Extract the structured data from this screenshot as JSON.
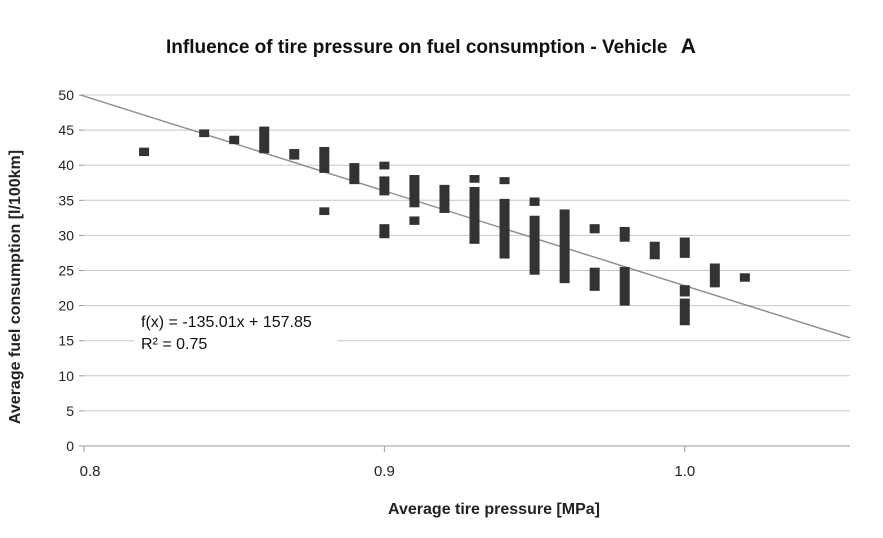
{
  "chart_data": {
    "type": "scatter",
    "title": "Influence of tire pressure on fuel consumption  - Vehicle",
    "title_suffix": "A",
    "xlabel": "Average tire pressure [MPa]",
    "ylabel": "Average fuel consumption [l/100km]",
    "xlim": [
      0.8,
      1.055
    ],
    "ylim": [
      0,
      50
    ],
    "xticks": [
      0.8,
      0.9,
      1.0
    ],
    "xtick_labels": [
      "0.8",
      "0.9",
      "1.0"
    ],
    "yticks": [
      0,
      5,
      10,
      15,
      20,
      25,
      30,
      35,
      40,
      45,
      50
    ],
    "ytick_labels": [
      "0",
      "5",
      "10",
      "15",
      "20",
      "25",
      "30",
      "35",
      "40",
      "45",
      "50"
    ],
    "grid": true,
    "legend": "none",
    "equation": "f(x) = -135.01x + 157.85",
    "r_squared": "R² = 0.75",
    "trendline": {
      "slope": -135.01,
      "intercept": 157.85
    },
    "series": [
      {
        "name": "Vehicle A",
        "points": [
          {
            "x": 0.82,
            "y_min": 41.3,
            "y_max": 42.5
          },
          {
            "x": 0.84,
            "y_min": 44.0,
            "y_max": 45.1
          },
          {
            "x": 0.85,
            "y_min": 43.0,
            "y_max": 44.2
          },
          {
            "x": 0.86,
            "y_min": 41.7,
            "y_max": 45.5
          },
          {
            "x": 0.87,
            "y_min": 40.8,
            "y_max": 42.3
          },
          {
            "x": 0.88,
            "y_min": 38.9,
            "y_max": 42.6
          },
          {
            "x": 0.88,
            "y_min": 32.9,
            "y_max": 34.0
          },
          {
            "x": 0.89,
            "y_min": 37.3,
            "y_max": 40.3
          },
          {
            "x": 0.9,
            "y_min": 39.4,
            "y_max": 40.5
          },
          {
            "x": 0.9,
            "y_min": 35.7,
            "y_max": 38.4
          },
          {
            "x": 0.9,
            "y_min": 29.6,
            "y_max": 31.6
          },
          {
            "x": 0.91,
            "y_min": 34.0,
            "y_max": 38.6
          },
          {
            "x": 0.91,
            "y_min": 31.5,
            "y_max": 32.7
          },
          {
            "x": 0.92,
            "y_min": 33.2,
            "y_max": 37.2
          },
          {
            "x": 0.93,
            "y_min": 37.5,
            "y_max": 38.6
          },
          {
            "x": 0.93,
            "y_min": 28.8,
            "y_max": 36.9
          },
          {
            "x": 0.94,
            "y_min": 37.3,
            "y_max": 38.3
          },
          {
            "x": 0.94,
            "y_min": 26.7,
            "y_max": 35.2
          },
          {
            "x": 0.95,
            "y_min": 34.2,
            "y_max": 35.4
          },
          {
            "x": 0.95,
            "y_min": 24.4,
            "y_max": 32.8
          },
          {
            "x": 0.96,
            "y_min": 23.2,
            "y_max": 33.7
          },
          {
            "x": 0.97,
            "y_min": 30.3,
            "y_max": 31.6
          },
          {
            "x": 0.97,
            "y_min": 22.1,
            "y_max": 25.4
          },
          {
            "x": 0.98,
            "y_min": 29.1,
            "y_max": 31.2
          },
          {
            "x": 0.98,
            "y_min": 20.0,
            "y_max": 25.5
          },
          {
            "x": 0.99,
            "y_min": 26.6,
            "y_max": 29.1
          },
          {
            "x": 1.0,
            "y_min": 26.8,
            "y_max": 29.7
          },
          {
            "x": 1.0,
            "y_min": 21.3,
            "y_max": 22.9
          },
          {
            "x": 1.0,
            "y_min": 17.2,
            "y_max": 21.0
          },
          {
            "x": 1.01,
            "y_min": 22.6,
            "y_max": 26.0
          },
          {
            "x": 1.02,
            "y_min": 23.4,
            "y_max": 24.6
          }
        ]
      }
    ]
  }
}
